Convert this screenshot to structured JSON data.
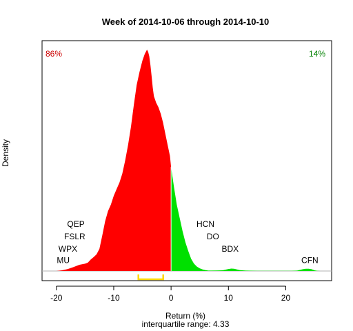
{
  "chart_data": {
    "type": "area",
    "title": "Week of 2014-10-06 through 2014-10-10",
    "xlabel": "Return (%)",
    "ylabel": "Density",
    "xlim": [
      -22.5,
      28
    ],
    "ylim": [
      0,
      1
    ],
    "xticks": [
      -20,
      -10,
      0,
      10,
      20
    ],
    "subtitle": "interquartile range: 4.33",
    "left_pct": {
      "text": "86%",
      "color": "#cc0000"
    },
    "right_pct": {
      "text": "14%",
      "color": "#008000"
    },
    "colors": {
      "negative": "#ff0000",
      "positive": "#00e000",
      "iqr": "#ffd700",
      "axis": "#000000",
      "baseline": "#b0b0b0"
    },
    "iqr": [
      -5.7,
      -1.37
    ],
    "density": {
      "x": [
        -20,
        -19,
        -18,
        -17,
        -16,
        -15,
        -14.5,
        -14,
        -13.5,
        -13,
        -12.5,
        -12,
        -11.5,
        -11,
        -10.5,
        -10,
        -9.5,
        -9,
        -8.5,
        -8,
        -7.5,
        -7,
        -6.5,
        -6,
        -5.5,
        -5,
        -4.8,
        -4.6,
        -4.4,
        -4.2,
        -4,
        -3.8,
        -3.6,
        -3.4,
        -3.2,
        -3,
        -2.6,
        -2.2,
        -1.8,
        -1.4,
        -1,
        -0.6,
        -0.2,
        0,
        0.5,
        1,
        1.5,
        2,
        2.5,
        3,
        3.5,
        4,
        4.5,
        5,
        5.5,
        6,
        6.5,
        7,
        8,
        9,
        10,
        10.5,
        11,
        12,
        13,
        15,
        18,
        21,
        22,
        23,
        23.5,
        24,
        24.5,
        25,
        25.5,
        26
      ],
      "y": [
        0,
        0.003,
        0.009,
        0.018,
        0.028,
        0.033,
        0.038,
        0.052,
        0.063,
        0.075,
        0.1,
        0.16,
        0.225,
        0.27,
        0.3,
        0.34,
        0.37,
        0.4,
        0.44,
        0.5,
        0.57,
        0.65,
        0.75,
        0.84,
        0.9,
        0.95,
        0.965,
        0.98,
        0.99,
        1.0,
        0.99,
        0.97,
        0.93,
        0.88,
        0.83,
        0.79,
        0.76,
        0.74,
        0.71,
        0.67,
        0.62,
        0.57,
        0.52,
        0.47,
        0.38,
        0.3,
        0.24,
        0.18,
        0.13,
        0.09,
        0.055,
        0.033,
        0.02,
        0.012,
        0.007,
        0.004,
        0.002,
        0.002,
        0.0025,
        0.003,
        0.009,
        0.011,
        0.01,
        0.004,
        0.002,
        0.001,
        0.001,
        0.001,
        0.002,
        0.008,
        0.01,
        0.01,
        0.008,
        0.003,
        0.001,
        0
      ]
    },
    "ticker_labels": [
      {
        "text": "QEP",
        "x": -16.6,
        "y": 0.212
      },
      {
        "text": "FSLR",
        "x": -16.8,
        "y": 0.155
      },
      {
        "text": "WPX",
        "x": -18.0,
        "y": 0.1
      },
      {
        "text": "MU",
        "x": -18.8,
        "y": 0.048
      },
      {
        "text": "HCN",
        "x": 6.0,
        "y": 0.212
      },
      {
        "text": "DO",
        "x": 7.3,
        "y": 0.155
      },
      {
        "text": "BDX",
        "x": 10.3,
        "y": 0.1
      },
      {
        "text": "CFN",
        "x": 24.2,
        "y": 0.048
      }
    ]
  }
}
